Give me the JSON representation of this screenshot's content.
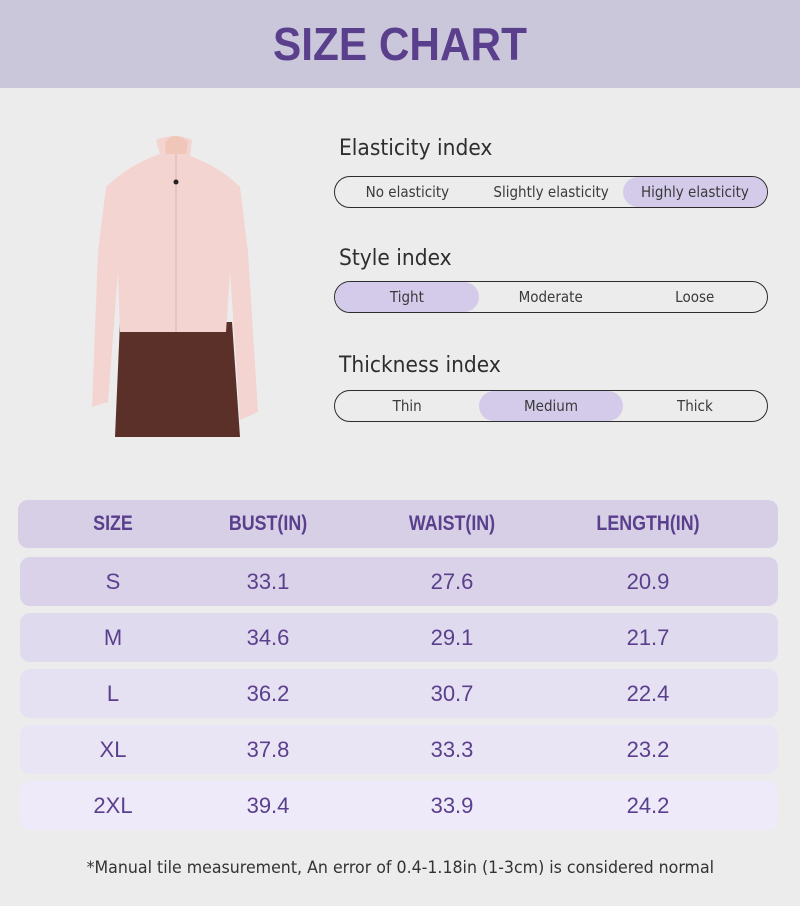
{
  "header": {
    "title": "SIZE CHART"
  },
  "colors": {
    "accent": "#5a3f8d",
    "header_bg": "#cbc7da",
    "selected": "#d4cbea",
    "background": "#ececec"
  },
  "indices": [
    {
      "title": "Elasticity index",
      "options": [
        "No elasticity",
        "Slightly elasticity",
        "Highly elasticity"
      ],
      "selected": "Highly elasticity"
    },
    {
      "title": "Style index",
      "options": [
        "Tight",
        "Moderate",
        "Loose"
      ],
      "selected": "Tight"
    },
    {
      "title": "Thickness index",
      "options": [
        "Thin",
        "Medium",
        "Thick"
      ],
      "selected": "Medium"
    }
  ],
  "table": {
    "headers": [
      "SIZE",
      "BUST(IN)",
      "WAIST(IN)",
      "LENGTH(IN)"
    ],
    "rows": [
      [
        "S",
        "33.1",
        "27.6",
        "20.9"
      ],
      [
        "M",
        "34.6",
        "29.1",
        "21.7"
      ],
      [
        "L",
        "36.2",
        "30.7",
        "22.4"
      ],
      [
        "XL",
        "37.8",
        "33.3",
        "23.2"
      ],
      [
        "2XL",
        "39.4",
        "33.9",
        "24.2"
      ]
    ]
  },
  "footnote": "*Manual tile measurement, An error of 0.4-1.18in (1-3cm) is considered normal"
}
